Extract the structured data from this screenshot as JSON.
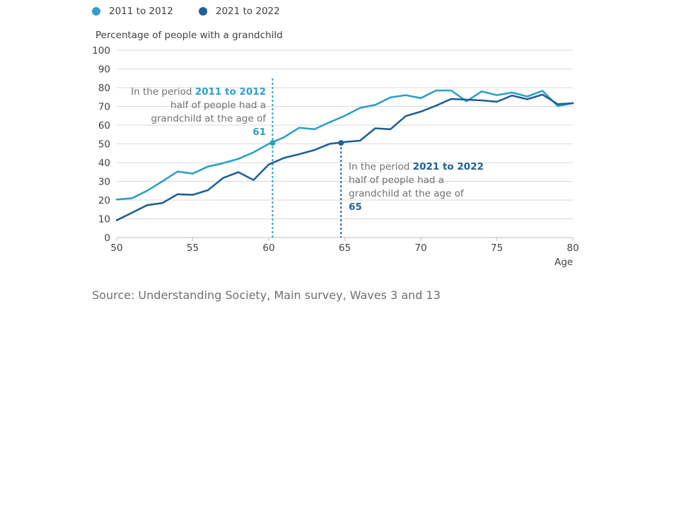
{
  "colors": {
    "series_2011": "#2ea0c7",
    "series_2021": "#206095",
    "grid": "#d9d9d9",
    "axis": "#bebebe"
  },
  "chart_data": {
    "type": "line",
    "ylabel": "Percentage of people with a grandchild",
    "xlabel": "Age",
    "ylim": [
      0,
      100
    ],
    "xlim": [
      50,
      80
    ],
    "yticks": [
      0,
      10,
      20,
      30,
      40,
      50,
      60,
      70,
      80,
      90,
      100
    ],
    "xticks": [
      50,
      55,
      60,
      65,
      70,
      75,
      80
    ],
    "grid": true,
    "legend_position": "top-left",
    "x": [
      50,
      51,
      52,
      53,
      54,
      55,
      56,
      57,
      58,
      59,
      60,
      61,
      62,
      63,
      64,
      65,
      66,
      67,
      68,
      69,
      70,
      71,
      72,
      73,
      74,
      75,
      76,
      77,
      78,
      79,
      80
    ],
    "series": [
      {
        "name": "2011 to 2012",
        "values": [
          20.3,
          21,
          25,
          30,
          35.2,
          34.1,
          37.9,
          39.7,
          42,
          45.5,
          50,
          53.5,
          58.6,
          57.8,
          61.5,
          65,
          69.2,
          70.8,
          74.8,
          76,
          74.4,
          78.5,
          78.5,
          72.7,
          78,
          76,
          77.4,
          75.3,
          78.3,
          70.2,
          71.7
        ]
      },
      {
        "name": "2021 to 2022",
        "values": [
          9.2,
          13.2,
          17.3,
          18.4,
          23.1,
          22.8,
          25.3,
          31.8,
          34.9,
          30.7,
          39,
          42.5,
          44.5,
          46.7,
          50,
          51,
          51.7,
          58.3,
          57.8,
          64.8,
          67.2,
          70.4,
          74,
          73.6,
          73.2,
          72.5,
          75.8,
          73.8,
          76.3,
          71.2,
          71.7
        ]
      }
    ],
    "annotations": [
      {
        "series": "2011 to 2012",
        "x": 60.25,
        "y": 50.5,
        "prefix": "In the period",
        "period": "2011 to 2012",
        "middle": "half of people had a grandchild at the age of",
        "age": "61"
      },
      {
        "series": "2021 to 2022",
        "x": 64.75,
        "y": 50.5,
        "prefix": "In the period",
        "period": "2021 to 2022",
        "middle": "half of people had a grandchild at the age of",
        "age": "65"
      }
    ]
  },
  "source": "Source: Understanding Society, Main survey, Waves 3 and 13"
}
